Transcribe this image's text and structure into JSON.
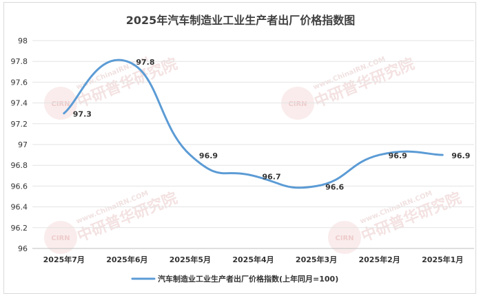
{
  "chart_data": {
    "type": "line",
    "title": "2025年汽车制造业工业生产者出厂价格指数图",
    "categories": [
      "2025年7月",
      "2025年6月",
      "2025年5月",
      "2025年4月",
      "2025年3月",
      "2025年2月",
      "2025年1月"
    ],
    "series": [
      {
        "name": "汽车制造业工业生产者出厂价格指数(上年同月=100)",
        "values": [
          97.3,
          97.8,
          96.9,
          96.7,
          96.6,
          96.9,
          96.9
        ],
        "labels": [
          "97.3",
          "97.8",
          "96.9",
          "96.7",
          "96.6",
          "96.9",
          "96.9"
        ],
        "color": "#5b9bd5"
      }
    ],
    "yticks": [
      "96",
      "96.2",
      "96.4",
      "96.6",
      "96.8",
      "97",
      "97.2",
      "97.4",
      "97.6",
      "97.8",
      "98"
    ],
    "ylim": [
      96,
      98
    ],
    "grid": true,
    "legend_position": "bottom",
    "smooth": true
  },
  "watermark": {
    "badge_text": "CIRN",
    "brand_text": "中研普华研究院",
    "url_text": "www.ChinaIRN.COM"
  }
}
